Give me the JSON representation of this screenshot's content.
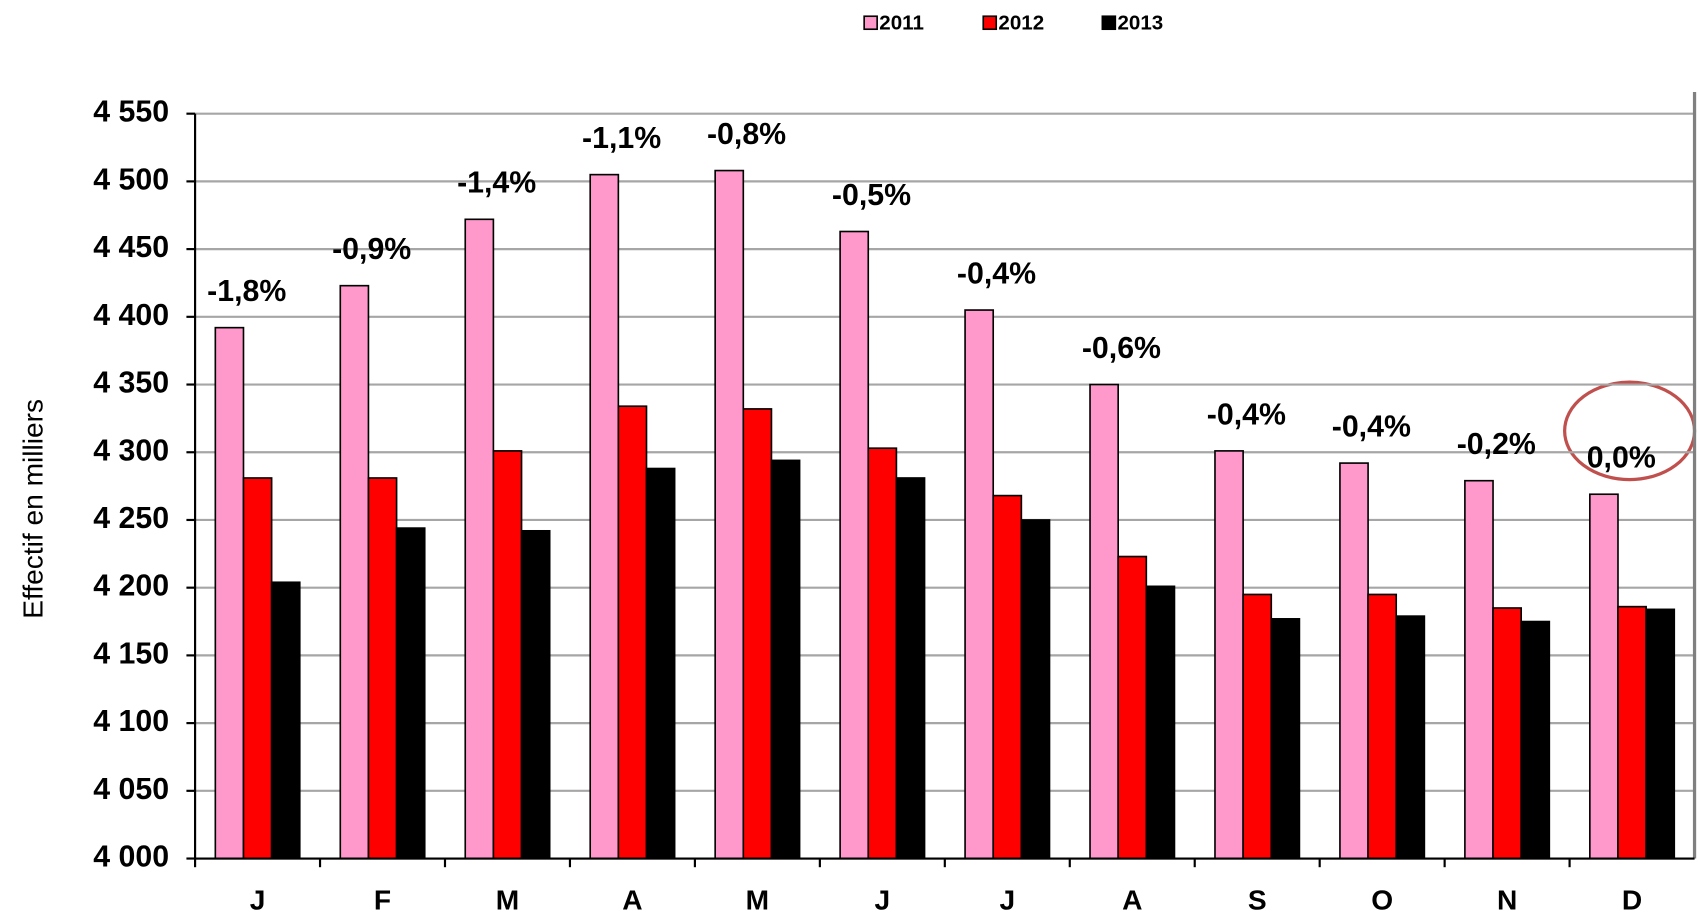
{
  "chart_data": {
    "type": "bar",
    "y_label": "Effectif en milliers",
    "categories": [
      "J",
      "F",
      "M",
      "A",
      "M",
      "J",
      "J",
      "A",
      "S",
      "O",
      "N",
      "D"
    ],
    "series": [
      {
        "name": "2011",
        "color": "#ff99cc",
        "values": [
          4392,
          4423,
          4472,
          4505,
          4508,
          4463,
          4405,
          4350,
          4301,
          4292,
          4279,
          4269
        ]
      },
      {
        "name": "2012",
        "color": "#ff0000",
        "values": [
          4281,
          4281,
          4301,
          4334,
          4332,
          4303,
          4268,
          4223,
          4195,
          4195,
          4185,
          4186
        ]
      },
      {
        "name": "2013",
        "color": "#000000",
        "values": [
          4204,
          4244,
          4242,
          4288,
          4294,
          4281,
          4250,
          4201,
          4177,
          4179,
          4175,
          4184
        ]
      }
    ],
    "annotations": [
      "-1,8%",
      "-0,9%",
      "-1,4%",
      "-1,1%",
      "-0,8%",
      "-0,5%",
      "-0,4%",
      "-0,6%",
      "-0,4%",
      "-0,4%",
      "-0,2%",
      "0,0%"
    ],
    "ylim": [
      4000,
      4550
    ],
    "yticks": [
      {
        "value": 4000,
        "label": "4 000"
      },
      {
        "value": 4050,
        "label": "4 050"
      },
      {
        "value": 4100,
        "label": "4 100"
      },
      {
        "value": 4150,
        "label": "4 150"
      },
      {
        "value": 4200,
        "label": "4 200"
      },
      {
        "value": 4250,
        "label": "4 250"
      },
      {
        "value": 4300,
        "label": "4 300"
      },
      {
        "value": 4350,
        "label": "4 350"
      },
      {
        "value": 4400,
        "label": "4 400"
      },
      {
        "value": 4450,
        "label": "4 450"
      },
      {
        "value": 4500,
        "label": "4 500"
      },
      {
        "value": 4550,
        "label": "4 550"
      }
    ],
    "grid": true,
    "legend": "top"
  }
}
